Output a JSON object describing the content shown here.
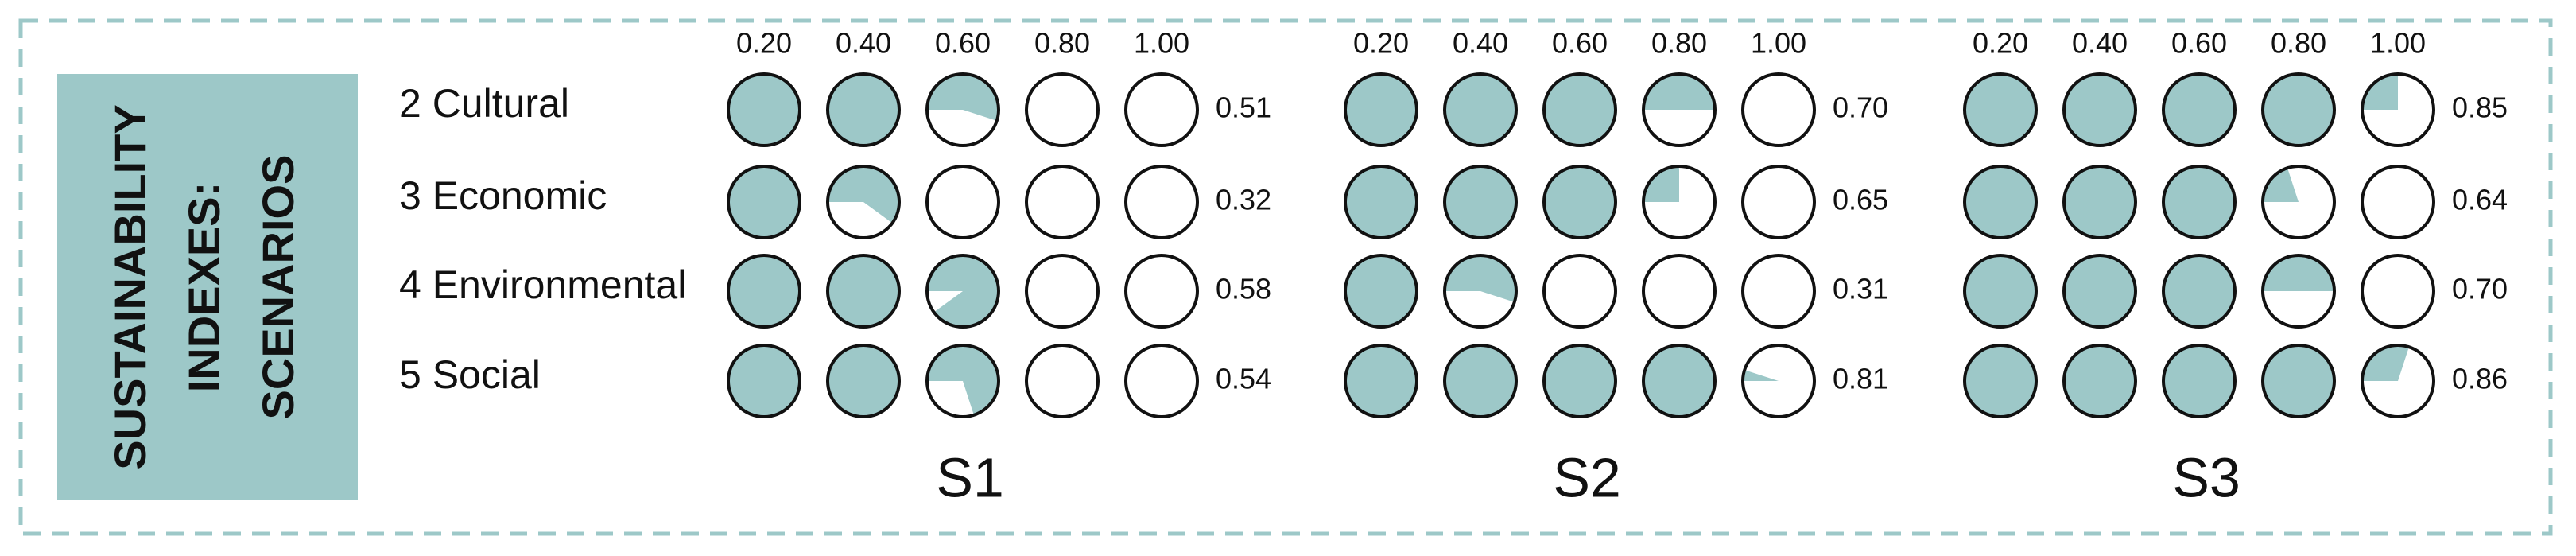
{
  "chart_data": {
    "type": "harvey",
    "title": [
      "SUSTAINABILITY",
      "INDEXES:",
      "SCENARIOS"
    ],
    "categories": [
      "2 Cultural",
      "3 Economic",
      "4 Environmental",
      "5 Social"
    ],
    "xlim": [
      0,
      1
    ],
    "xticks": [
      {
        "value": 0.2,
        "label": "0.20"
      },
      {
        "value": 0.4,
        "label": "0.40"
      },
      {
        "value": 0.6,
        "label": "0.60"
      },
      {
        "value": 0.8,
        "label": "0.80"
      },
      {
        "value": 1,
        "label": "1.00"
      }
    ],
    "color": "#9dc8c8",
    "series": [
      {
        "name": "S1",
        "values": [
          0.51,
          0.32,
          0.58,
          0.54
        ],
        "value_labels": [
          "0.51",
          "0.32",
          "0.58",
          "0.54"
        ]
      },
      {
        "name": "S2",
        "values": [
          0.7,
          0.65,
          0.31,
          0.81
        ],
        "value_labels": [
          "0.70",
          "0.65",
          "0.31",
          "0.81"
        ]
      },
      {
        "name": "S3",
        "values": [
          0.85,
          0.64,
          0.7,
          0.86
        ],
        "value_labels": [
          "0.85",
          "0.64",
          "0.70",
          "0.86"
        ]
      }
    ]
  }
}
